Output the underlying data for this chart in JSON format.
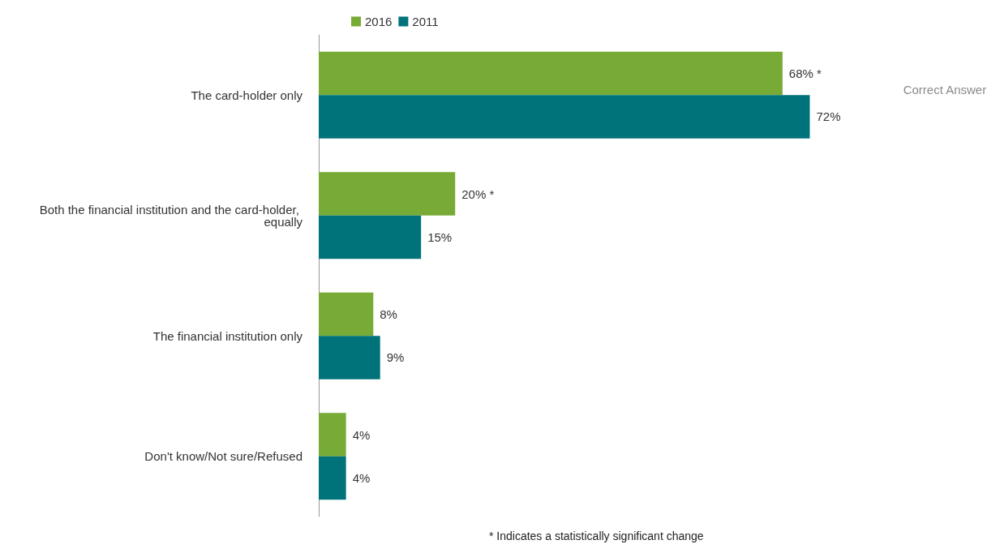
{
  "chart_data": {
    "type": "bar",
    "orientation": "horizontal",
    "categories": [
      "The card-holder only",
      "Both the financial institution and the card-holder, equally",
      "The financial institution only",
      "Don't know/Not sure/Refused"
    ],
    "series": [
      {
        "name": "2016",
        "color": "#77ab36",
        "values": [
          68,
          20,
          8,
          4
        ],
        "value_labels": [
          "68% *",
          "20% *",
          "8%",
          "4%"
        ]
      },
      {
        "name": "2011",
        "color": "#00737a",
        "values": [
          72,
          15,
          9,
          4
        ],
        "value_labels": [
          "72%",
          "15%",
          "9%",
          "4%"
        ]
      }
    ],
    "annotations": [
      "Correct Answer",
      "* Indicates a statistically significant change"
    ],
    "legend": "top left"
  }
}
